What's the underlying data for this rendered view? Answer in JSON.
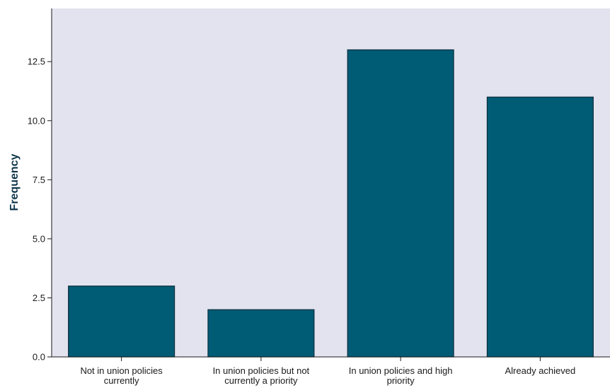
{
  "chart_data": {
    "type": "bar",
    "title": "",
    "xlabel": "",
    "ylabel": "Frequency",
    "categories": [
      [
        "Not in union policies",
        "currently"
      ],
      [
        "In union policies but not",
        "currently a priority"
      ],
      [
        "In union policies and high",
        "priority"
      ],
      [
        "Already achieved"
      ]
    ],
    "values": [
      3,
      2,
      13,
      11
    ],
    "ylim": [
      0,
      14.75
    ],
    "yticks": [
      0.0,
      2.5,
      5.0,
      7.5,
      10.0,
      12.5
    ],
    "ytick_labels": [
      "0.0",
      "2.5",
      "5.0",
      "7.5",
      "10.0",
      "12.5"
    ],
    "grid": false,
    "colors": {
      "bar_fill": "#005b75",
      "bar_stroke": "#0e2f3d",
      "plot_background": "#e2e3ef",
      "axis": "#1a1a1a"
    }
  }
}
